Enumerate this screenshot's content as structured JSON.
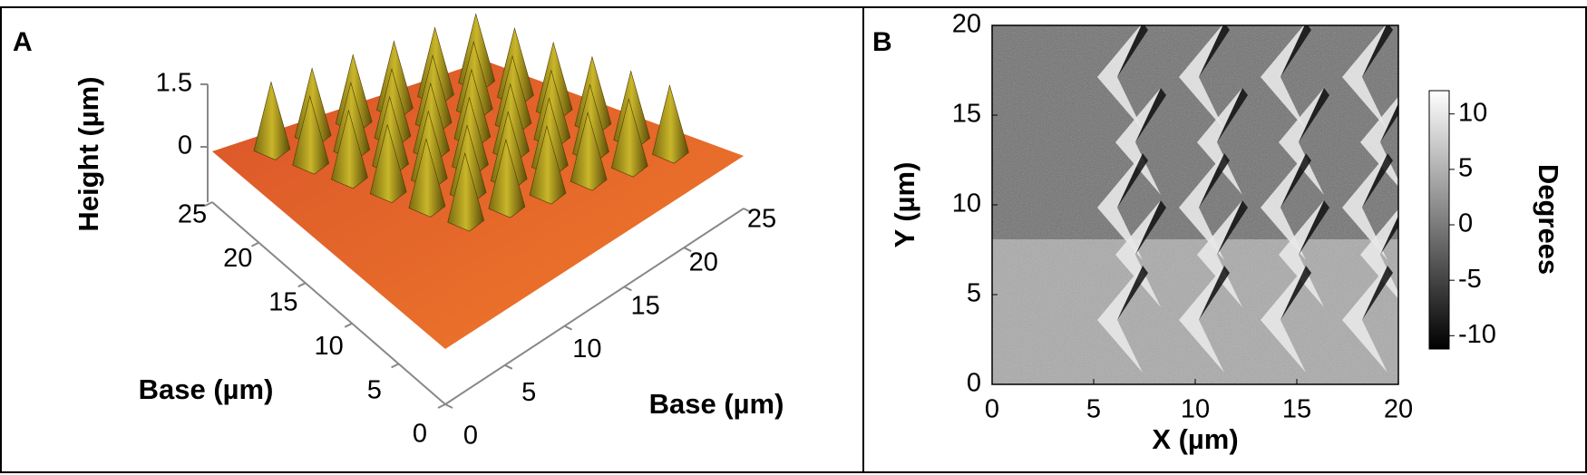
{
  "panels": [
    {
      "label": "A",
      "z_label": "Height (µm)",
      "z_ticks": [
        0,
        1.5
      ],
      "left_axis_label": "Base (µm)",
      "left_ticks": [
        0,
        5,
        10,
        15,
        20,
        25
      ],
      "right_axis_label": "Base (µm)",
      "right_ticks": [
        0,
        5,
        10,
        15,
        20,
        25
      ]
    },
    {
      "label": "B",
      "x_label": "X (µm)",
      "y_label": "Y (µm)",
      "xlim": [
        0,
        20
      ],
      "xticks": [
        0,
        5,
        10,
        15,
        20
      ],
      "ylim": [
        0,
        20
      ],
      "yticks": [
        0,
        5,
        10,
        15,
        20
      ],
      "colorbar": {
        "label": "Degrees",
        "lim": [
          -11.2,
          12.1
        ],
        "ticks": [
          -10,
          -5,
          0,
          5,
          10
        ]
      }
    }
  ]
}
